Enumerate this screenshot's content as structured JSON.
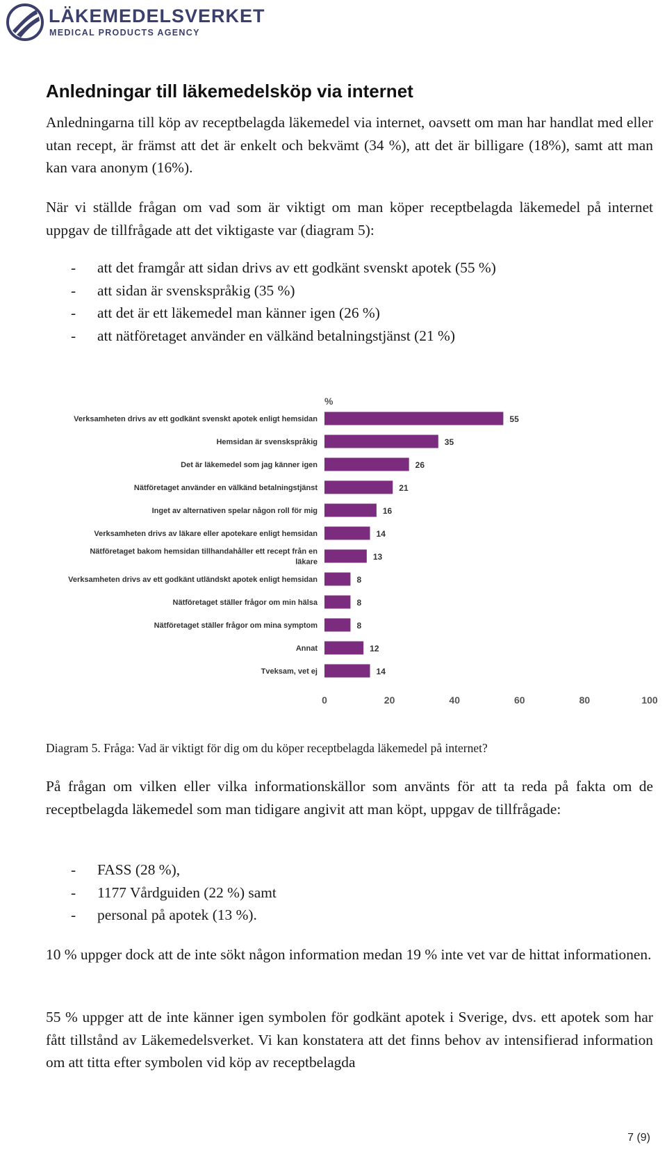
{
  "header": {
    "title": "LÄKEMEDELSVERKET",
    "subtitle": "MEDICAL PRODUCTS AGENCY"
  },
  "heading": "Anledningar till läkemedelsköp via internet",
  "para1": "Anledningarna till köp av receptbelagda läkemedel via internet, oavsett om man har handlat med eller utan recept, är främst att det är enkelt och bekvämt (34 %), att det är billigare (18%), samt att man kan vara anonym (16%).",
  "para2": "När vi ställde frågan om vad som är viktigt om man köper receptbelagda läkemedel på internet uppgav de tillfrågade att det viktigaste var (diagram 5):",
  "list1": [
    "att det framgår att sidan drivs av ett godkänt svenskt apotek (55 %)",
    "att sidan är svenskspråkig (35 %)",
    "att det är ett läkemedel man känner igen (26 %)",
    "att nätföretaget använder en välkänd betalningstjänst (21 %)"
  ],
  "chart_data": {
    "type": "bar",
    "orientation": "horizontal",
    "unit_label": "%",
    "categories": [
      "Verksamheten drivs av ett godkänt svenskt apotek enligt hemsidan",
      "Hemsidan är svenskspråkig",
      "Det är läkemedel som jag känner igen",
      "Nätföretaget använder en välkänd betalningstjänst",
      "Inget av alternativen spelar någon roll för mig",
      "Verksamheten drivs av läkare eller apotekare enligt hemsidan",
      [
        "Nätföretaget bakom hemsidan tillhandahåller ett recept från en",
        "läkare"
      ],
      "Verksamheten drivs av ett godkänt utländskt apotek enligt hemsidan",
      "Nätföretaget ställer frågor om min hälsa",
      "Nätföretaget ställer frågor om mina symptom",
      "Annat",
      "Tveksam, vet ej"
    ],
    "values": [
      55,
      35,
      26,
      21,
      16,
      14,
      13,
      8,
      8,
      8,
      12,
      14
    ],
    "xlim": [
      0,
      100
    ],
    "xticks": [
      "0",
      "20",
      "40",
      "60",
      "80",
      "100"
    ],
    "bar_color": "#7b2c7f",
    "grid": false,
    "legend": "none"
  },
  "caption": "Diagram 5. Fråga: Vad är viktigt för dig om du köper receptbelagda läkemedel på internet?",
  "para3": "På frågan om vilken eller vilka informationskällor som använts för att ta reda på fakta om de receptbelagda läkemedel som man tidigare angivit att man köpt, uppgav de tillfrågade:",
  "list2": [
    "FASS (28 %),",
    "1177 Vårdguiden (22 %) samt",
    "personal på apotek (13 %)."
  ],
  "list_dash": "-",
  "para4": "10 % uppger dock att de inte sökt någon information medan 19 % inte vet var de hittat informationen.",
  "para5": "55 % uppger att de inte känner igen symbolen för godkänt apotek i Sverige, dvs. ett apotek som har fått tillstånd av Läkemedelsverket. Vi kan konstatera att det finns behov av intensifierad information om att titta efter symbolen vid köp av receptbelagda",
  "page_number": "7 (9)"
}
